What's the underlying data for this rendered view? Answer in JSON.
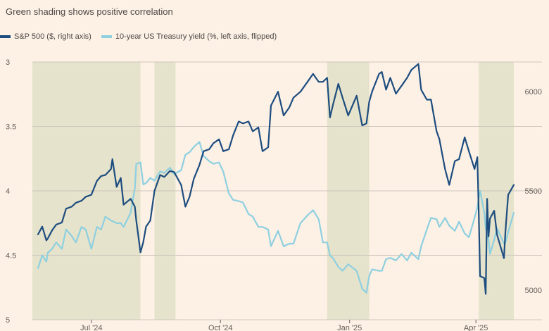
{
  "subtitle": "Green shading shows positive correlation",
  "legend": [
    {
      "label": "S&P 500 ($, right axis)",
      "color": "#1d4c7e"
    },
    {
      "label": "10-year US Treasury yield (%, left axis, flipped)",
      "color": "#8ecfe0"
    }
  ],
  "colors": {
    "background": "#fdf1e6",
    "shading": "#e5e3cc",
    "grid": "#cfc6bd",
    "sp500": "#1d4c7e",
    "yield": "#8ecfe0"
  },
  "chart_data": {
    "type": "line",
    "title": "",
    "subtitle": "Green shading shows positive correlation",
    "x_range": [
      "2024-05-20",
      "2025-04-28"
    ],
    "x_ticks": [
      {
        "date": "2024-07-01",
        "label": "Jul '24"
      },
      {
        "date": "2024-10-01",
        "label": "Oct '24"
      },
      {
        "date": "2025-01-01",
        "label": "Jan '25"
      },
      {
        "date": "2025-04-01",
        "label": "Apr '25"
      }
    ],
    "y_left": {
      "min": 3,
      "max": 5,
      "inverted": true,
      "ticks": [
        3,
        3.5,
        4,
        4.5,
        5
      ],
      "tick_labels": [
        "3",
        "3.5",
        "4",
        "4.5",
        "5"
      ]
    },
    "y_right": {
      "min": 4850,
      "max": 6150,
      "ticks": [
        5000,
        5500,
        6000
      ],
      "tick_labels": [
        "5000",
        "5500",
        "6000"
      ]
    },
    "shaded_periods": [
      {
        "start": "2024-05-20",
        "end": "2024-08-05"
      },
      {
        "start": "2024-08-15",
        "end": "2024-08-30"
      },
      {
        "start": "2024-12-16",
        "end": "2025-01-15"
      },
      {
        "start": "2025-04-03",
        "end": "2025-04-28"
      }
    ],
    "series": [
      {
        "name": "S&P 500 ($, right axis)",
        "axis": "right",
        "points": [
          [
            "2024-05-24",
            5280
          ],
          [
            "2024-05-27",
            5320
          ],
          [
            "2024-05-30",
            5250
          ],
          [
            "2024-05-31",
            5260
          ],
          [
            "2024-06-03",
            5300
          ],
          [
            "2024-06-06",
            5330
          ],
          [
            "2024-06-10",
            5340
          ],
          [
            "2024-06-13",
            5410
          ],
          [
            "2024-06-17",
            5420
          ],
          [
            "2024-06-20",
            5440
          ],
          [
            "2024-06-24",
            5450
          ],
          [
            "2024-06-27",
            5470
          ],
          [
            "2024-07-01",
            5480
          ],
          [
            "2024-07-05",
            5550
          ],
          [
            "2024-07-08",
            5575
          ],
          [
            "2024-07-11",
            5580
          ],
          [
            "2024-07-15",
            5610
          ],
          [
            "2024-07-16",
            5660
          ],
          [
            "2024-07-19",
            5520
          ],
          [
            "2024-07-22",
            5565
          ],
          [
            "2024-07-24",
            5430
          ],
          [
            "2024-07-29",
            5460
          ],
          [
            "2024-08-01",
            5420
          ],
          [
            "2024-08-02",
            5350
          ],
          [
            "2024-08-05",
            5190
          ],
          [
            "2024-08-07",
            5240
          ],
          [
            "2024-08-09",
            5320
          ],
          [
            "2024-08-12",
            5350
          ],
          [
            "2024-08-15",
            5500
          ],
          [
            "2024-08-19",
            5580
          ],
          [
            "2024-08-22",
            5570
          ],
          [
            "2024-08-26",
            5600
          ],
          [
            "2024-08-29",
            5595
          ],
          [
            "2024-09-03",
            5530
          ],
          [
            "2024-09-06",
            5420
          ],
          [
            "2024-09-09",
            5470
          ],
          [
            "2024-09-12",
            5560
          ],
          [
            "2024-09-16",
            5630
          ],
          [
            "2024-09-19",
            5700
          ],
          [
            "2024-09-23",
            5710
          ],
          [
            "2024-09-26",
            5740
          ],
          [
            "2024-09-30",
            5760
          ],
          [
            "2024-10-03",
            5700
          ],
          [
            "2024-10-07",
            5710
          ],
          [
            "2024-10-10",
            5780
          ],
          [
            "2024-10-14",
            5850
          ],
          [
            "2024-10-17",
            5840
          ],
          [
            "2024-10-21",
            5850
          ],
          [
            "2024-10-24",
            5800
          ],
          [
            "2024-10-28",
            5820
          ],
          [
            "2024-10-31",
            5700
          ],
          [
            "2024-11-04",
            5720
          ],
          [
            "2024-11-06",
            5930
          ],
          [
            "2024-11-11",
            6000
          ],
          [
            "2024-11-15",
            5880
          ],
          [
            "2024-11-19",
            5920
          ],
          [
            "2024-11-22",
            5970
          ],
          [
            "2024-11-27",
            6000
          ],
          [
            "2024-12-02",
            6050
          ],
          [
            "2024-12-06",
            6090
          ],
          [
            "2024-12-10",
            6050
          ],
          [
            "2024-12-13",
            6050
          ],
          [
            "2024-12-16",
            6070
          ],
          [
            "2024-12-18",
            5870
          ],
          [
            "2024-12-20",
            5930
          ],
          [
            "2024-12-24",
            6040
          ],
          [
            "2024-12-27",
            5970
          ],
          [
            "2024-12-31",
            5880
          ],
          [
            "2025-01-06",
            5980
          ],
          [
            "2025-01-10",
            5830
          ],
          [
            "2025-01-13",
            5840
          ],
          [
            "2025-01-15",
            5950
          ],
          [
            "2025-01-17",
            6000
          ],
          [
            "2025-01-22",
            6090
          ],
          [
            "2025-01-24",
            6100
          ],
          [
            "2025-01-27",
            6010
          ],
          [
            "2025-01-30",
            6070
          ],
          [
            "2025-02-03",
            5990
          ],
          [
            "2025-02-07",
            6030
          ],
          [
            "2025-02-11",
            6070
          ],
          [
            "2025-02-14",
            6110
          ],
          [
            "2025-02-19",
            6140
          ],
          [
            "2025-02-21",
            6010
          ],
          [
            "2025-02-25",
            5960
          ],
          [
            "2025-02-28",
            5960
          ],
          [
            "2025-03-04",
            5800
          ],
          [
            "2025-03-06",
            5760
          ],
          [
            "2025-03-10",
            5610
          ],
          [
            "2025-03-13",
            5530
          ],
          [
            "2025-03-17",
            5650
          ],
          [
            "2025-03-20",
            5660
          ],
          [
            "2025-03-24",
            5770
          ],
          [
            "2025-03-27",
            5700
          ],
          [
            "2025-03-31",
            5610
          ],
          [
            "2025-04-02",
            5670
          ],
          [
            "2025-04-03",
            5400
          ],
          [
            "2025-04-04",
            5070
          ],
          [
            "2025-04-07",
            5060
          ],
          [
            "2025-04-08",
            4980
          ],
          [
            "2025-04-09",
            5460
          ],
          [
            "2025-04-10",
            5270
          ],
          [
            "2025-04-11",
            5360
          ],
          [
            "2025-04-14",
            5400
          ],
          [
            "2025-04-16",
            5280
          ],
          [
            "2025-04-21",
            5160
          ],
          [
            "2025-04-22",
            5290
          ],
          [
            "2025-04-24",
            5480
          ],
          [
            "2025-04-28",
            5530
          ]
        ]
      },
      {
        "name": "10-year US Treasury yield (%, left axis, flipped)",
        "axis": "left",
        "points": [
          [
            "2024-05-24",
            4.6
          ],
          [
            "2024-05-27",
            4.5
          ],
          [
            "2024-05-30",
            4.55
          ],
          [
            "2024-05-31",
            4.48
          ],
          [
            "2024-06-03",
            4.45
          ],
          [
            "2024-06-06",
            4.4
          ],
          [
            "2024-06-10",
            4.45
          ],
          [
            "2024-06-13",
            4.3
          ],
          [
            "2024-06-17",
            4.35
          ],
          [
            "2024-06-20",
            4.4
          ],
          [
            "2024-06-24",
            4.28
          ],
          [
            "2024-06-27",
            4.3
          ],
          [
            "2024-07-01",
            4.45
          ],
          [
            "2024-07-05",
            4.28
          ],
          [
            "2024-07-08",
            4.3
          ],
          [
            "2024-07-11",
            4.2
          ],
          [
            "2024-07-15",
            4.23
          ],
          [
            "2024-07-19",
            4.25
          ],
          [
            "2024-07-22",
            4.25
          ],
          [
            "2024-07-24",
            4.28
          ],
          [
            "2024-07-29",
            4.17
          ],
          [
            "2024-08-01",
            3.98
          ],
          [
            "2024-08-02",
            3.79
          ],
          [
            "2024-08-05",
            3.78
          ],
          [
            "2024-08-07",
            3.95
          ],
          [
            "2024-08-09",
            3.94
          ],
          [
            "2024-08-12",
            3.9
          ],
          [
            "2024-08-15",
            3.92
          ],
          [
            "2024-08-19",
            3.85
          ],
          [
            "2024-08-22",
            3.86
          ],
          [
            "2024-08-26",
            3.82
          ],
          [
            "2024-08-29",
            3.87
          ],
          [
            "2024-09-03",
            3.84
          ],
          [
            "2024-09-06",
            3.72
          ],
          [
            "2024-09-09",
            3.7
          ],
          [
            "2024-09-12",
            3.66
          ],
          [
            "2024-09-16",
            3.62
          ],
          [
            "2024-09-19",
            3.73
          ],
          [
            "2024-09-23",
            3.77
          ],
          [
            "2024-09-26",
            3.79
          ],
          [
            "2024-09-30",
            3.78
          ],
          [
            "2024-10-03",
            3.85
          ],
          [
            "2024-10-07",
            4.02
          ],
          [
            "2024-10-10",
            4.07
          ],
          [
            "2024-10-14",
            4.08
          ],
          [
            "2024-10-17",
            4.09
          ],
          [
            "2024-10-21",
            4.18
          ],
          [
            "2024-10-24",
            4.2
          ],
          [
            "2024-10-28",
            4.28
          ],
          [
            "2024-10-31",
            4.28
          ],
          [
            "2024-11-04",
            4.3
          ],
          [
            "2024-11-06",
            4.43
          ],
          [
            "2024-11-11",
            4.31
          ],
          [
            "2024-11-15",
            4.43
          ],
          [
            "2024-11-19",
            4.41
          ],
          [
            "2024-11-22",
            4.41
          ],
          [
            "2024-11-27",
            4.25
          ],
          [
            "2024-12-02",
            4.19
          ],
          [
            "2024-12-06",
            4.15
          ],
          [
            "2024-12-10",
            4.22
          ],
          [
            "2024-12-13",
            4.4
          ],
          [
            "2024-12-16",
            4.4
          ],
          [
            "2024-12-18",
            4.5
          ],
          [
            "2024-12-20",
            4.52
          ],
          [
            "2024-12-24",
            4.59
          ],
          [
            "2024-12-27",
            4.62
          ],
          [
            "2024-12-31",
            4.57
          ],
          [
            "2025-01-06",
            4.62
          ],
          [
            "2025-01-10",
            4.76
          ],
          [
            "2025-01-13",
            4.79
          ],
          [
            "2025-01-15",
            4.66
          ],
          [
            "2025-01-17",
            4.61
          ],
          [
            "2025-01-22",
            4.62
          ],
          [
            "2025-01-24",
            4.62
          ],
          [
            "2025-01-27",
            4.53
          ],
          [
            "2025-01-30",
            4.52
          ],
          [
            "2025-02-03",
            4.54
          ],
          [
            "2025-02-07",
            4.49
          ],
          [
            "2025-02-11",
            4.54
          ],
          [
            "2025-02-14",
            4.48
          ],
          [
            "2025-02-19",
            4.53
          ],
          [
            "2025-02-21",
            4.43
          ],
          [
            "2025-02-25",
            4.3
          ],
          [
            "2025-02-28",
            4.21
          ],
          [
            "2025-03-04",
            4.22
          ],
          [
            "2025-03-06",
            4.28
          ],
          [
            "2025-03-10",
            4.21
          ],
          [
            "2025-03-13",
            4.27
          ],
          [
            "2025-03-17",
            4.31
          ],
          [
            "2025-03-20",
            4.24
          ],
          [
            "2025-03-24",
            4.33
          ],
          [
            "2025-03-27",
            4.36
          ],
          [
            "2025-03-31",
            4.21
          ],
          [
            "2025-04-02",
            4.13
          ],
          [
            "2025-04-03",
            4.06
          ],
          [
            "2025-04-04",
            4.0
          ],
          [
            "2025-04-07",
            4.17
          ],
          [
            "2025-04-08",
            4.29
          ],
          [
            "2025-04-09",
            4.33
          ],
          [
            "2025-04-10",
            4.38
          ],
          [
            "2025-04-11",
            4.49
          ],
          [
            "2025-04-14",
            4.38
          ],
          [
            "2025-04-16",
            4.29
          ],
          [
            "2025-04-21",
            4.41
          ],
          [
            "2025-04-22",
            4.4
          ],
          [
            "2025-04-24",
            4.32
          ],
          [
            "2025-04-28",
            4.17
          ]
        ]
      }
    ]
  }
}
